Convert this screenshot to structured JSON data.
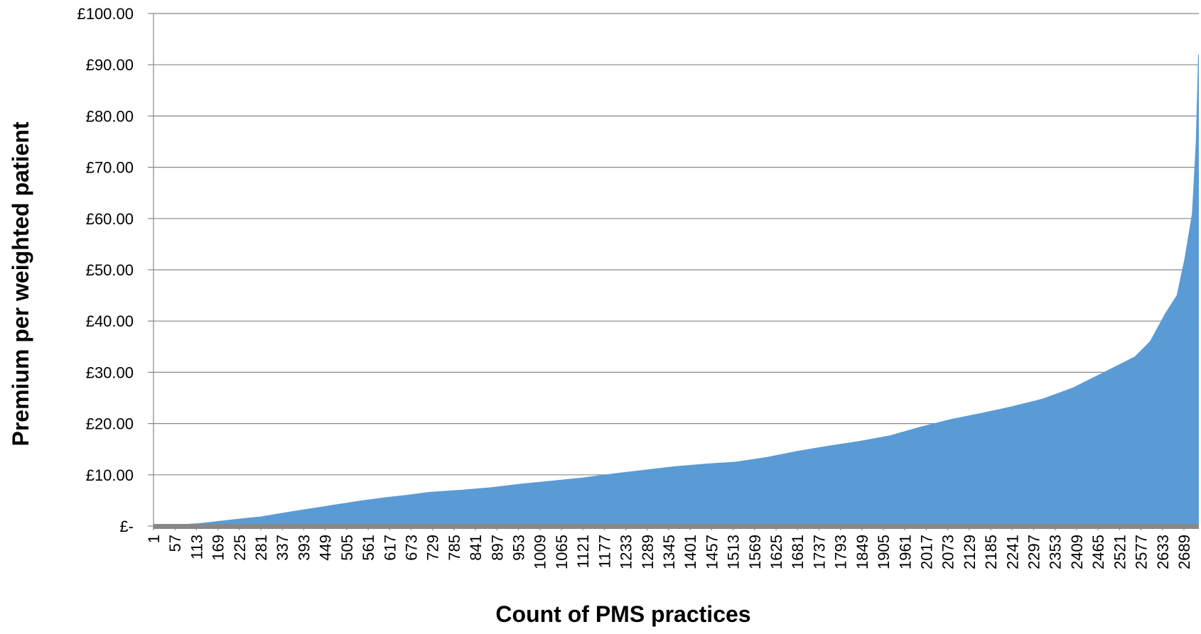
{
  "chart_data": {
    "type": "area",
    "x_label": "Count of PMS practices",
    "y_label": "Premium per weighted patient",
    "color": "#5b9bd5",
    "grid": true,
    "x": [
      1,
      60,
      121,
      181,
      241,
      281,
      361,
      421,
      481,
      541,
      601,
      661,
      721,
      801,
      881,
      961,
      1041,
      1121,
      1201,
      1281,
      1361,
      1441,
      1521,
      1601,
      1681,
      1761,
      1841,
      1921,
      2001,
      2081,
      2161,
      2241,
      2321,
      2401,
      2481,
      2561,
      2601,
      2641,
      2671,
      2691,
      2711,
      2721,
      2727
    ],
    "values": [
      0,
      0.2,
      0.5,
      1.0,
      1.5,
      1.8,
      2.8,
      3.5,
      4.2,
      4.9,
      5.5,
      6.0,
      6.6,
      7.0,
      7.5,
      8.2,
      8.8,
      9.4,
      10.2,
      10.9,
      11.6,
      12.1,
      12.5,
      13.4,
      14.6,
      15.6,
      16.5,
      17.6,
      19.3,
      20.8,
      22.0,
      23.3,
      24.8,
      27.0,
      30.0,
      33.0,
      36.0,
      41.5,
      45.0,
      52.0,
      61,
      75,
      92
    ],
    "xlim": [
      1,
      2728
    ],
    "xticks": [
      1,
      57,
      113,
      169,
      225,
      281,
      337,
      393,
      449,
      505,
      561,
      617,
      673,
      729,
      785,
      841,
      897,
      953,
      1009,
      1065,
      1121,
      1177,
      1233,
      1289,
      1345,
      1401,
      1457,
      1513,
      1569,
      1625,
      1681,
      1737,
      1793,
      1849,
      1905,
      1961,
      2017,
      2073,
      2129,
      2185,
      2241,
      2297,
      2353,
      2409,
      2465,
      2521,
      2577,
      2633,
      2689
    ],
    "ylim": [
      0,
      100
    ],
    "yticks": [
      {
        "value": 0,
        "label": "£-"
      },
      {
        "value": 10,
        "label": "£10.00"
      },
      {
        "value": 20,
        "label": "£20.00"
      },
      {
        "value": 30,
        "label": "£30.00"
      },
      {
        "value": 40,
        "label": "£40.00"
      },
      {
        "value": 50,
        "label": "£50.00"
      },
      {
        "value": 60,
        "label": "£60.00"
      },
      {
        "value": 70,
        "label": "£70.00"
      },
      {
        "value": 80,
        "label": "£80.00"
      },
      {
        "value": 90,
        "label": "£90.00"
      },
      {
        "value": 100,
        "label": "£100.00"
      }
    ]
  }
}
